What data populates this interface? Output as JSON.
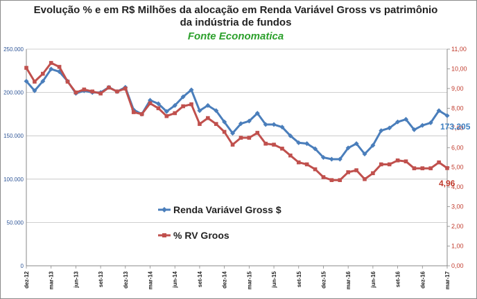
{
  "chart_data": {
    "type": "line",
    "title_line1": "Evolução % e em R$ Milhões da alocação em Renda Variável Gross vs patrimônio",
    "title_line2": "da indústria de fundos",
    "subtitle": "Fonte Economatica",
    "x_tick_labels": [
      "dez-12",
      "mar-13",
      "jun-13",
      "set-13",
      "dez-13",
      "mar-14",
      "jun-14",
      "set-14",
      "dez-14",
      "mar-15",
      "jun-15",
      "set-15",
      "dez-15",
      "mar-16",
      "jun-16",
      "set-16",
      "dez-16",
      "mar-17"
    ],
    "y_left": {
      "ylim": [
        0,
        250000
      ],
      "ticks": [
        "0",
        "50.000",
        "100.000",
        "150.000",
        "200.000",
        "250.000"
      ],
      "color": "#2e5597"
    },
    "y_right": {
      "ylim": [
        0,
        11
      ],
      "ticks": [
        "0,00",
        "1,00",
        "2,00",
        "3,00",
        "4,00",
        "5,00",
        "6,00",
        "7,00",
        "8,00",
        "9,00",
        "10,00",
        "11,00"
      ],
      "color": "#c0392b"
    },
    "series": [
      {
        "name": "Renda Variável Gross $",
        "axis": "left",
        "color": "#4a7ebb",
        "values": [
          213000,
          202000,
          213000,
          227000,
          224000,
          213000,
          199000,
          202000,
          200000,
          200000,
          206000,
          201000,
          206000,
          180000,
          175000,
          191000,
          187000,
          178000,
          185000,
          195000,
          203000,
          179000,
          185000,
          179000,
          166000,
          153000,
          164000,
          167000,
          176000,
          163000,
          163000,
          160000,
          150000,
          142000,
          141000,
          135000,
          125000,
          123000,
          123000,
          136000,
          141000,
          129000,
          139000,
          156000,
          159000,
          166000,
          169000,
          157000,
          162000,
          165000,
          179000,
          173205
        ],
        "end_label": "173.205"
      },
      {
        "name": "% RV Groos",
        "axis": "right",
        "color": "#c0504d",
        "values": [
          10.05,
          9.35,
          9.75,
          10.3,
          10.1,
          9.35,
          8.8,
          8.95,
          8.85,
          8.75,
          9.05,
          8.85,
          9.0,
          7.8,
          7.7,
          8.25,
          8.0,
          7.6,
          7.75,
          8.1,
          8.2,
          7.2,
          7.5,
          7.2,
          6.8,
          6.15,
          6.5,
          6.5,
          6.75,
          6.2,
          6.15,
          5.95,
          5.6,
          5.25,
          5.15,
          4.9,
          4.5,
          4.35,
          4.35,
          4.75,
          4.85,
          4.4,
          4.7,
          5.15,
          5.15,
          5.35,
          5.3,
          4.95,
          4.95,
          4.95,
          5.25,
          4.96
        ],
        "end_label": "4,96"
      }
    ],
    "legend_placement": "center-left",
    "grid": "horizontal"
  }
}
